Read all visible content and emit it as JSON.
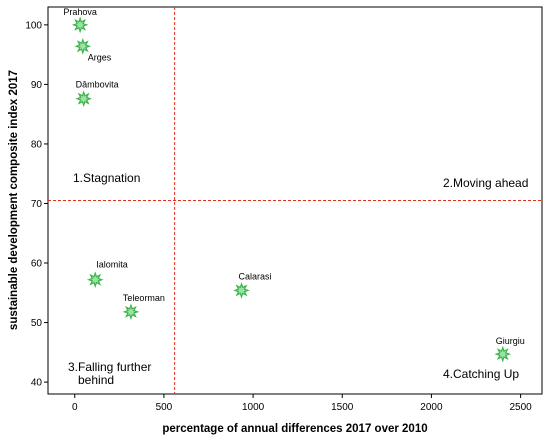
{
  "chart_data": {
    "type": "scatter",
    "xlabel": "percentage of annual differences 2017 over 2010",
    "ylabel": "sustainable development composite index  2017",
    "xlim": [
      -150,
      2620
    ],
    "ylim": [
      38,
      103
    ],
    "x_ticks": [
      0,
      500,
      1000,
      1500,
      2000,
      2500
    ],
    "y_ticks": [
      40,
      50,
      60,
      70,
      80,
      90,
      100
    ],
    "grid": false,
    "reference_lines": {
      "x": 560,
      "y": 70.5
    },
    "marker_color": "#3cb44b",
    "reference_line_color": "#e0301e",
    "points": [
      {
        "label": "Prahova",
        "x": 30,
        "y": 100.0
      },
      {
        "label": "Arges",
        "x": 45,
        "y": 96.4
      },
      {
        "label": "Dâmbovita",
        "x": 50,
        "y": 87.6
      },
      {
        "label": "Ialomita",
        "x": 115,
        "y": 57.2
      },
      {
        "label": "Teleorman",
        "x": 315,
        "y": 51.8
      },
      {
        "label": "Calarasi",
        "x": 935,
        "y": 55.4
      },
      {
        "label": "Giurgiu",
        "x": 2400,
        "y": 44.7
      }
    ],
    "quadrants": [
      {
        "id": "stagnation",
        "label": "1.Stagnation"
      },
      {
        "id": "moving-ahead",
        "label": "2.Moving ahead"
      },
      {
        "id": "falling-behind",
        "line1": "3.Falling further",
        "line2": "behind"
      },
      {
        "id": "catching-up",
        "label": "4.Catching Up"
      }
    ]
  }
}
